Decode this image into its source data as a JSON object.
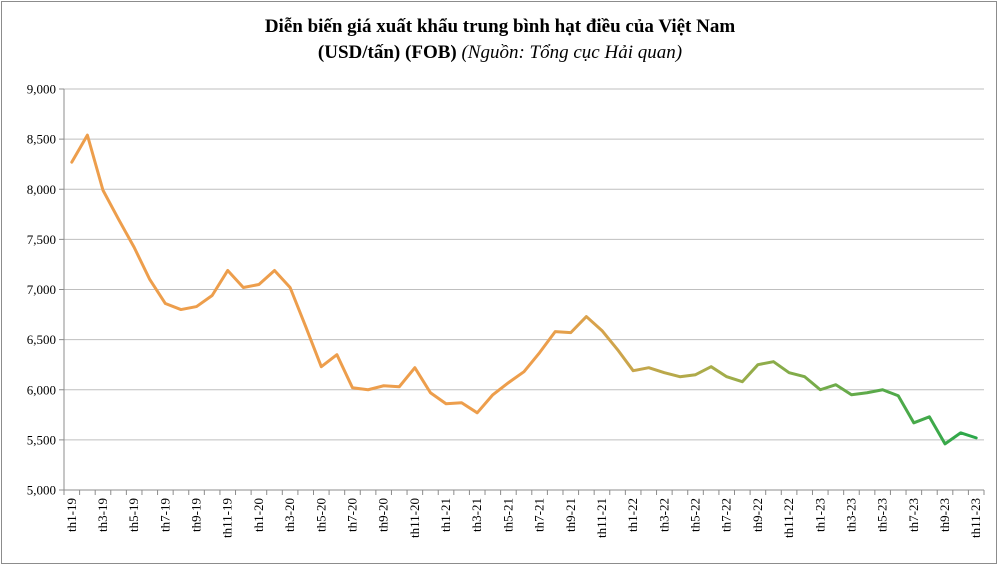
{
  "chart_data": {
    "type": "line",
    "title_line1": "Diễn biến giá xuất khẩu trung bình hạt điều của Việt Nam",
    "title_line2": "(USD/tấn) (FOB)",
    "title_source": "(Nguồn: Tổng cục Hải quan)",
    "xlabel": "",
    "ylabel": "",
    "ylim": [
      5000,
      9000
    ],
    "yticks": [
      5000,
      5500,
      6000,
      6500,
      7000,
      7500,
      8000,
      8500,
      9000
    ],
    "ytick_labels": [
      "5,000",
      "5,500",
      "6,000",
      "6,500",
      "7,000",
      "7,500",
      "8,000",
      "8,500",
      "9,000"
    ],
    "grid": true,
    "legend": "none",
    "categories": [
      "th1-19",
      "th2-19",
      "th3-19",
      "th4-19",
      "th5-19",
      "th6-19",
      "th7-19",
      "th8-19",
      "th9-19",
      "th10-19",
      "th11-19",
      "th12-19",
      "th1-20",
      "th2-20",
      "th3-20",
      "th4-20",
      "th5-20",
      "th6-20",
      "th7-20",
      "th8-20",
      "th9-20",
      "th10-20",
      "th11-20",
      "th12-20",
      "th1-21",
      "th2-21",
      "th3-21",
      "th4-21",
      "th5-21",
      "th6-21",
      "th7-21",
      "th8-21",
      "th9-21",
      "th10-21",
      "th11-21",
      "th12-21",
      "th1-22",
      "th2-22",
      "th3-22",
      "th4-22",
      "th5-22",
      "th6-22",
      "th7-22",
      "th8-22",
      "th9-22",
      "th10-22",
      "th11-22",
      "th12-22",
      "th1-23",
      "th2-23",
      "th3-23",
      "th4-23",
      "th5-23",
      "th6-23",
      "th7-23",
      "th8-23",
      "th9-23",
      "th10-23",
      "th11-23"
    ],
    "x_tick_labels": [
      "th1-19",
      "th3-19",
      "th5-19",
      "th7-19",
      "th9-19",
      "th11-19",
      "th1-20",
      "th3-20",
      "th5-20",
      "th7-20",
      "th9-20",
      "th11-20",
      "th1-21",
      "th3-21",
      "th5-21",
      "th7-21",
      "th9-21",
      "th11-21",
      "th1-22",
      "th3-22",
      "th5-22",
      "th7-22",
      "th9-22",
      "th11-22",
      "th1-23",
      "th3-23",
      "th5-23",
      "th7-23",
      "th9-23",
      "th11-23"
    ],
    "series": [
      {
        "values": [
          8270,
          8540,
          7990,
          7700,
          7420,
          7100,
          6860,
          6800,
          6830,
          6940,
          7190,
          7020,
          7050,
          7190,
          7020,
          6630,
          6230,
          6350,
          6020,
          6000,
          6040,
          6030,
          6220,
          5970,
          5860,
          5870,
          5770,
          5950,
          6070,
          6180,
          6370,
          6580,
          6570,
          6730,
          6590,
          6400,
          6190,
          6220,
          6170,
          6130,
          6150,
          6230,
          6130,
          6080,
          6250,
          6280,
          6170,
          6130,
          6000,
          6050,
          5950,
          5970,
          6000,
          5940,
          5670,
          5730,
          5460,
          5570,
          5520
        ]
      }
    ],
    "colors": {
      "grid": "#bfbfbf",
      "axis": "#8c8c8c",
      "line_high": "#ed9e4c",
      "line_mid": "#a3ad4a",
      "line_low": "#2aa84a"
    }
  }
}
